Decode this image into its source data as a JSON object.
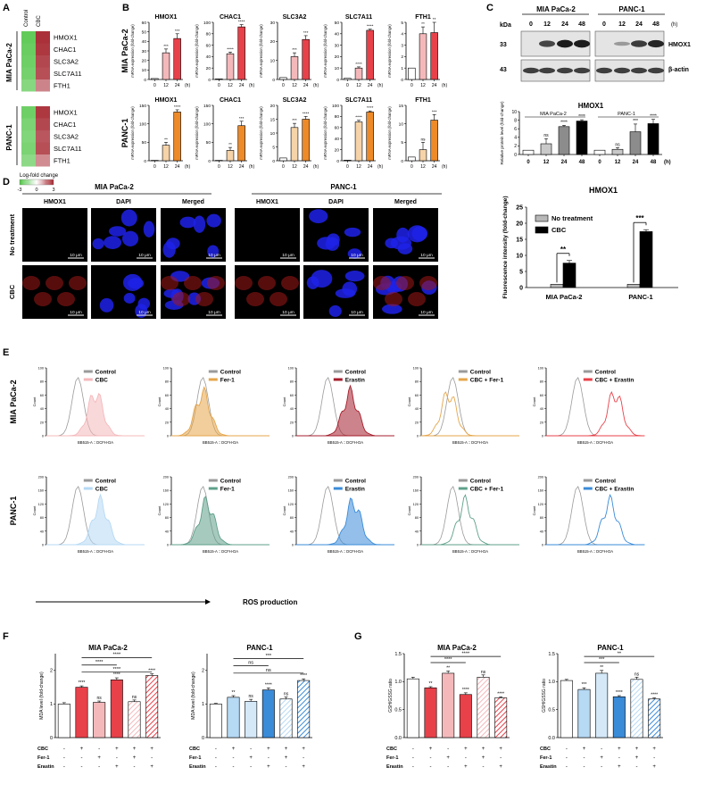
{
  "colors": {
    "ctrl_grey": "#c9c9c9",
    "mia_red": "#e8414a",
    "mia_pink": "#f4b8bb",
    "mia_dark": "#a41e2b",
    "panc_orange": "#ee8a28",
    "panc_light": "#f6d3a8",
    "panc_blue": "#3a8bd8",
    "panc_lightblue": "#b6d9f4",
    "panc_green": "#5e9f8a",
    "fer_orange": "#e6a54a",
    "panel_bg": "#000000"
  },
  "panels": {
    "A": "A",
    "B": "B",
    "C": "C",
    "D": "D",
    "E": "E",
    "F": "F",
    "G": "G"
  },
  "panelA": {
    "columns": [
      "Control",
      "CBC"
    ],
    "groups": [
      {
        "name": "MIA PaCa-2",
        "genes": [
          "HMOX1",
          "CHAC1",
          "SLC3A2",
          "SLC7A11",
          "FTH1"
        ],
        "control": [
          -2.6,
          -2.5,
          -2.4,
          -2.3,
          -2.0
        ],
        "cbc": [
          2.7,
          2.6,
          2.4,
          2.3,
          1.6
        ]
      },
      {
        "name": "PANC-1",
        "genes": [
          "HMOX1",
          "CHAC1",
          "SLC3A2",
          "SLC7A11",
          "FTH1"
        ],
        "control": [
          -2.4,
          -2.2,
          -2.1,
          -2.2,
          -1.9
        ],
        "cbc": [
          2.6,
          2.4,
          2.2,
          2.3,
          1.5
        ]
      }
    ],
    "legend_title": "Log-fold change",
    "legend_ticks": [
      "-3",
      "0",
      "3"
    ]
  },
  "panelB": {
    "ylabel": "mRNA expression (fold-change)",
    "xticks": [
      "0",
      "12",
      "24"
    ],
    "xunit": "(h)",
    "rows": [
      {
        "name": "MIA PaCa-2",
        "charts": [
          {
            "title": "HMOX1",
            "ymax": 60,
            "yticks": [
              "0",
              "10",
              "20",
              "30",
              "40",
              "50",
              "60"
            ],
            "values": [
              1,
              28,
              43
            ],
            "errors": [
              0,
              4,
              5
            ],
            "sig": [
              "",
              "***",
              "***"
            ]
          },
          {
            "title": "CHAC1",
            "ymax": 100,
            "yticks": [
              "0",
              "20",
              "40",
              "60",
              "80",
              "100"
            ],
            "values": [
              1,
              45,
              92
            ],
            "errors": [
              0,
              3,
              4
            ],
            "sig": [
              "",
              "****",
              "****"
            ]
          },
          {
            "title": "SLC3A2",
            "ymax": 30,
            "yticks": [
              "0",
              "10",
              "20",
              "30"
            ],
            "values": [
              1,
              12,
              21
            ],
            "errors": [
              0,
              2,
              2
            ],
            "sig": [
              "",
              "***",
              "***"
            ]
          },
          {
            "title": "SLC7A11",
            "ymax": 50,
            "yticks": [
              "0",
              "10",
              "20",
              "30",
              "40",
              "50"
            ],
            "values": [
              1,
              10,
              43
            ],
            "errors": [
              0,
              1,
              1
            ],
            "sig": [
              "",
              "****",
              "****"
            ]
          },
          {
            "title": "FTH1",
            "ymax": 5,
            "yticks": [
              "0",
              "1",
              "2",
              "3",
              "4",
              "5"
            ],
            "values": [
              1,
              4,
              4.1
            ],
            "errors": [
              0,
              0.6,
              0.9
            ],
            "sig": [
              "",
              "**",
              "**"
            ]
          }
        ]
      },
      {
        "name": "PANC-1",
        "charts": [
          {
            "title": "HMOX1",
            "ymax": 150,
            "yticks": [
              "0",
              "50",
              "100",
              "150"
            ],
            "values": [
              1,
              42,
              132
            ],
            "errors": [
              0,
              8,
              6
            ],
            "sig": [
              "",
              "**",
              "****"
            ]
          },
          {
            "title": "CHAC1",
            "ymax": 150,
            "yticks": [
              "0",
              "50",
              "100",
              "150"
            ],
            "values": [
              1,
              28,
              95
            ],
            "errors": [
              0,
              8,
              12
            ],
            "sig": [
              "",
              "**",
              "***"
            ]
          },
          {
            "title": "SLC3A2",
            "ymax": 20,
            "yticks": [
              "0",
              "5",
              "10",
              "15",
              "20"
            ],
            "values": [
              1,
              12,
              15
            ],
            "errors": [
              0,
              1.5,
              1
            ],
            "sig": [
              "",
              "***",
              "****"
            ]
          },
          {
            "title": "SLC7A11",
            "ymax": 100,
            "yticks": [
              "0",
              "20",
              "40",
              "60",
              "80",
              "100"
            ],
            "values": [
              1,
              70,
              88
            ],
            "errors": [
              0,
              3,
              2
            ],
            "sig": [
              "",
              "****",
              "****"
            ]
          },
          {
            "title": "FTH1",
            "ymax": 15,
            "yticks": [
              "0",
              "5",
              "10",
              "15"
            ],
            "values": [
              1,
              3,
              11
            ],
            "errors": [
              0,
              2,
              1.5
            ],
            "sig": [
              "",
              "ns",
              "***"
            ]
          }
        ]
      }
    ]
  },
  "panelC": {
    "kda_label": "kDa",
    "kda": [
      "33",
      "43"
    ],
    "lines": [
      "MIA PaCa-2",
      "PANC-1"
    ],
    "times": [
      "0",
      "12",
      "24",
      "48"
    ],
    "unit": "(h)",
    "proteins": [
      "HMOX1",
      "β-actin"
    ],
    "chart": {
      "title": "HMOX1",
      "ylabel": "Relative protein level (fold-change)",
      "ymax": 10,
      "yticks": [
        "0",
        "2",
        "4",
        "6",
        "8",
        "10"
      ],
      "xticks": [
        "0",
        "12",
        "24",
        "48",
        "0",
        "12",
        "24",
        "48"
      ],
      "values": [
        1,
        2.5,
        6.5,
        7.8,
        1,
        1.2,
        5.3,
        7.2
      ],
      "errors": [
        0,
        1.2,
        0.3,
        0.3,
        0,
        0.4,
        1.8,
        1.0
      ],
      "sig": [
        "",
        "ns",
        "****",
        "****",
        "",
        "ns",
        "***",
        "****"
      ],
      "groups": [
        "MIA PaCa-2",
        "PANC-1"
      ],
      "xunit": "(h)"
    }
  },
  "panelD": {
    "lines": [
      "MIA PaCa-2",
      "PANC-1"
    ],
    "columns": [
      "HMOX1",
      "DAPI",
      "Merged"
    ],
    "rows": [
      "No treatment",
      "CBC"
    ],
    "scale": "10 μm",
    "chart": {
      "title": "HMOX1",
      "ylabel": "Fluorescence intensity (fold-change)",
      "ymax": 25,
      "yticks": [
        "0",
        "5",
        "10",
        "15",
        "20",
        "25"
      ],
      "categories": [
        "MIA PaCa-2",
        "PANC-1"
      ],
      "series": [
        {
          "name": "No treatment",
          "values": [
            1,
            1
          ]
        },
        {
          "name": "CBC",
          "values": [
            7.6,
            17.4
          ],
          "errors": [
            0.8,
            0.6
          ]
        }
      ],
      "sig": [
        "**",
        "***"
      ]
    }
  },
  "panelE": {
    "rows": [
      "MIA PaCa-2",
      "PANC-1"
    ],
    "xlabel": "BB515-A :: DCFH-DA",
    "ylabel": "Count",
    "arrow_label": "ROS production",
    "legend_control": "Control",
    "treatments": [
      "CBC",
      "Fer-1",
      "Erastin",
      "CBC + Fer-1",
      "CBC + Erastin"
    ],
    "yticks_top": [
      "0",
      "20",
      "40",
      "60",
      "80",
      "100"
    ],
    "yticks_bottom": [
      "0",
      "40",
      "80",
      "120",
      "160",
      "200"
    ]
  },
  "panelF": {
    "ylabel": "MDA level (fold-change)",
    "ymax": 2.5,
    "yticks": [
      "0",
      "1",
      "2"
    ],
    "rows": [
      "CBC",
      "Fer-1",
      "Erastin"
    ],
    "matrix": [
      [
        "-",
        "+",
        "-",
        "+",
        "+",
        "+"
      ],
      [
        "-",
        "-",
        "+",
        "-",
        "+",
        "-"
      ],
      [
        "-",
        "-",
        "-",
        "+",
        "-",
        "+"
      ]
    ],
    "charts": [
      {
        "title": "MIA PaCa-2",
        "values": [
          1.0,
          1.5,
          1.05,
          1.72,
          1.07,
          1.85
        ],
        "errors": [
          0.04,
          0.04,
          0.04,
          0.06,
          0.05,
          0.05
        ],
        "sig": [
          "",
          "****",
          "ns",
          "****",
          "ns",
          "****"
        ],
        "brackets": [
          [
            "****",
            1,
            5,
            2.38
          ],
          [
            "****",
            1,
            3,
            2.16
          ],
          [
            "****",
            1,
            5,
            1.95
          ]
        ]
      },
      {
        "title": "PANC-1",
        "values": [
          1.0,
          1.2,
          1.08,
          1.42,
          1.15,
          1.7
        ],
        "errors": [
          0.02,
          0.05,
          0.06,
          0.06,
          0.06,
          0.05
        ],
        "sig": [
          "",
          "**",
          "ns",
          "****",
          "ns",
          "****"
        ],
        "brackets": [
          [
            "***",
            1,
            5,
            2.35
          ],
          [
            "ns",
            1,
            3,
            2.14
          ],
          [
            "ns",
            1,
            5,
            1.92
          ]
        ]
      }
    ]
  },
  "panelG": {
    "ylabel": "GSH/GSSG ratio",
    "ymax": 1.5,
    "yticks": [
      "0.0",
      "0.5",
      "1.0",
      "1.5"
    ],
    "rows": [
      "CBC",
      "Fer-1",
      "Erastin"
    ],
    "matrix": [
      [
        "-",
        "+",
        "-",
        "+",
        "+",
        "+"
      ],
      [
        "-",
        "-",
        "+",
        "-",
        "+",
        "-"
      ],
      [
        "-",
        "-",
        "-",
        "+",
        "-",
        "+"
      ]
    ],
    "charts": [
      {
        "title": "MIA PaCa-2",
        "values": [
          1.05,
          0.89,
          1.15,
          0.77,
          1.08,
          0.71
        ],
        "errors": [
          0.03,
          0.02,
          0.04,
          0.03,
          0.04,
          0.02
        ],
        "sig": [
          "",
          "**",
          "**",
          "****",
          "ns",
          "****"
        ],
        "brackets": [
          [
            "****",
            1,
            5,
            1.45
          ],
          [
            "****",
            1,
            3,
            1.34
          ]
        ]
      },
      {
        "title": "PANC-1",
        "values": [
          1.02,
          0.86,
          1.15,
          0.73,
          1.04,
          0.69
        ],
        "errors": [
          0.02,
          0.03,
          0.05,
          0.02,
          0.04,
          0.02
        ],
        "sig": [
          "",
          "***",
          "**",
          "****",
          "ns",
          "****"
        ],
        "brackets": [
          [
            "**",
            1,
            5,
            1.45
          ],
          [
            "***",
            1,
            3,
            1.34
          ]
        ]
      }
    ]
  }
}
